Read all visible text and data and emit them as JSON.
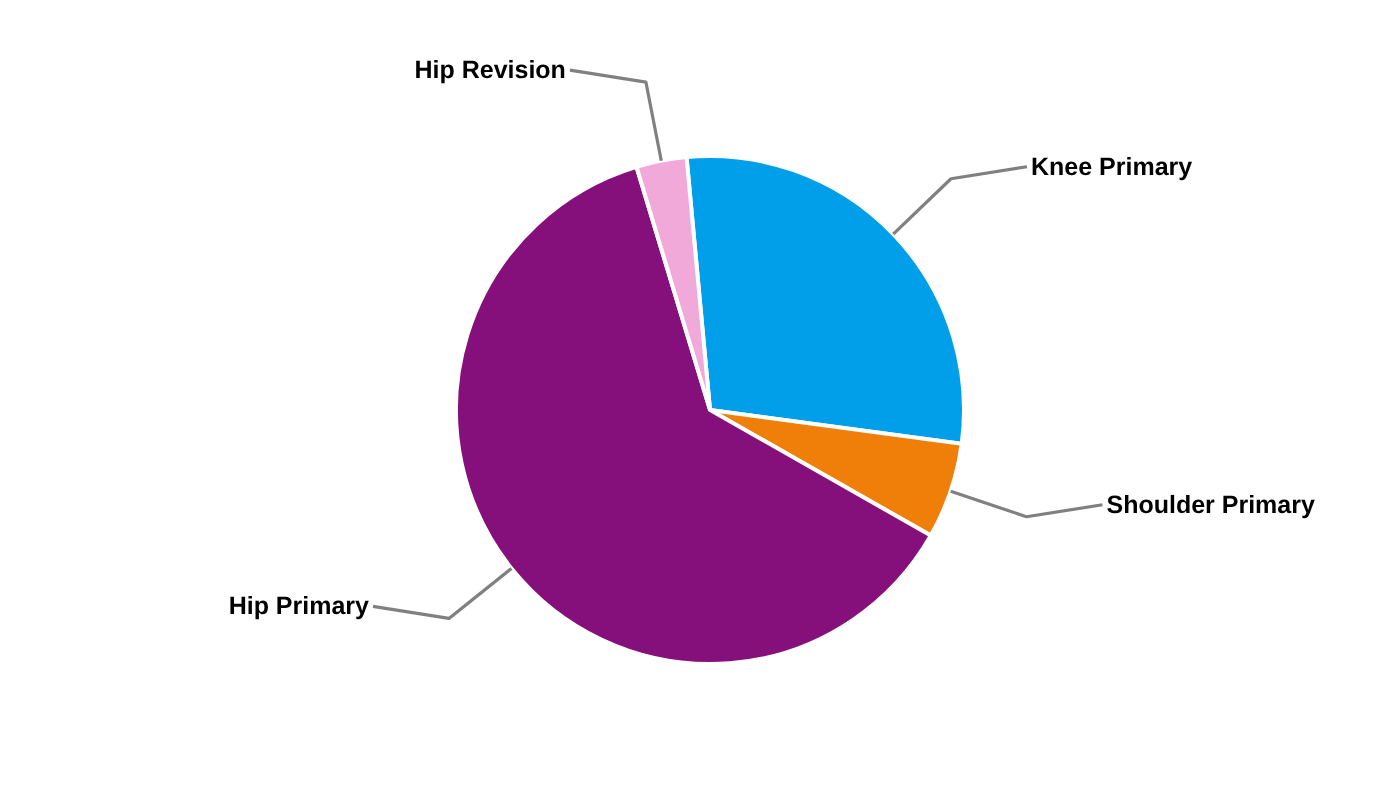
{
  "chart_data": {
    "type": "pie",
    "categories": [
      "Knee Primary",
      "Shoulder Primary",
      "Hip Primary",
      "Hip Revision"
    ],
    "values": [
      28.6,
      6.1,
      62.1,
      3.2
    ],
    "colors": [
      "#019fe9",
      "#f07f09",
      "#86107b",
      "#f0a9d9"
    ]
  }
}
